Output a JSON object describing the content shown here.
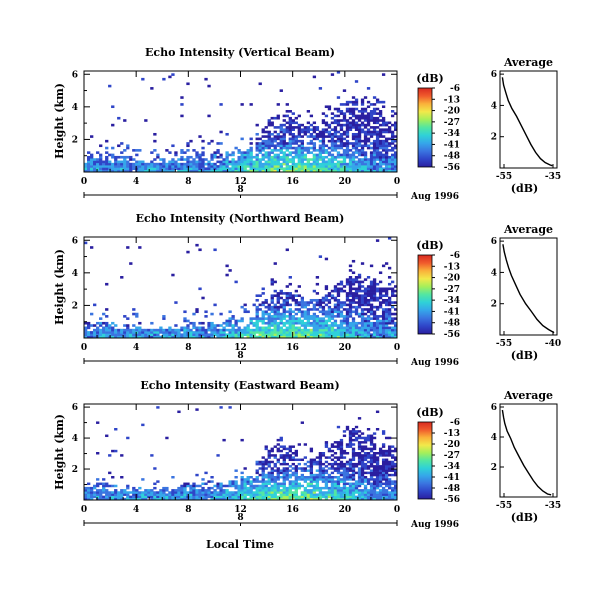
{
  "figure": {
    "x_axis_label": "Local Time",
    "date_label": "Aug 1996",
    "day_label": "8",
    "x_ticks": [
      "0",
      "4",
      "8",
      "12",
      "16",
      "20",
      "0"
    ],
    "y_ticks": [
      "6",
      "4",
      "2"
    ],
    "y_label": "Height (km)",
    "colorbar_unit": "(dB)",
    "colorbar_colors": [
      "#2a1fa0",
      "#2f45c8",
      "#3a74e0",
      "#35a6ea",
      "#2fd1d8",
      "#52e6a2",
      "#a5ef5a",
      "#f2e94a",
      "#fab13a",
      "#f05a2c",
      "#d92a20"
    ],
    "avg_title": "Average",
    "avg_xlabel": "(dB)"
  },
  "chart_data": [
    {
      "type": "heatmap",
      "title": "Echo Intensity (Vertical Beam)",
      "x": [
        0,
        4,
        8,
        12,
        16,
        20,
        24
      ],
      "xlim": [
        0,
        24
      ],
      "ylim": [
        0,
        6.2
      ],
      "colorbar_ticks": [
        "-6",
        "-13",
        "-20",
        "-27",
        "-34",
        "-41",
        "-48",
        "-56"
      ],
      "profile": {
        "title": "Average",
        "xticks": [
          "-55",
          "-35"
        ],
        "xlim": [
          -57,
          -33
        ],
        "ylim": [
          0,
          6.2
        ],
        "x": [
          -56,
          -55.5,
          -54.5,
          -53.5,
          -52,
          -50,
          -48,
          -46,
          -44,
          -42,
          -40,
          -38,
          -36,
          -35
        ],
        "y": [
          5.8,
          5.3,
          4.8,
          4.3,
          3.8,
          3.3,
          2.7,
          2.1,
          1.5,
          1.0,
          0.6,
          0.35,
          0.2,
          0.15
        ]
      }
    },
    {
      "type": "heatmap",
      "title": "Echo Intensity (Northward Beam)",
      "x": [
        0,
        4,
        8,
        12,
        16,
        20,
        24
      ],
      "xlim": [
        0,
        24
      ],
      "ylim": [
        0,
        6.2
      ],
      "colorbar_ticks": [
        "-6",
        "-13",
        "-20",
        "-27",
        "-34",
        "-41",
        "-48",
        "-56"
      ],
      "profile": {
        "title": "Average",
        "xticks": [
          "-55",
          "-40"
        ],
        "xlim": [
          -57,
          -37
        ],
        "ylim": [
          0,
          6.2
        ],
        "x": [
          -56,
          -55.5,
          -54.8,
          -54,
          -53,
          -51.5,
          -50,
          -48,
          -46,
          -44,
          -42,
          -40,
          -38.5,
          -38
        ],
        "y": [
          5.8,
          5.3,
          4.8,
          4.3,
          3.8,
          3.2,
          2.6,
          2.0,
          1.5,
          1.0,
          0.6,
          0.35,
          0.2,
          0.15
        ]
      }
    },
    {
      "type": "heatmap",
      "title": "Echo Intensity (Eastward Beam)",
      "x": [
        0,
        4,
        8,
        12,
        16,
        20,
        24
      ],
      "xlim": [
        0,
        24
      ],
      "ylim": [
        0,
        6.2
      ],
      "colorbar_ticks": [
        "-6",
        "-13",
        "-20",
        "-27",
        "-34",
        "-41",
        "-48",
        "-56"
      ],
      "profile": {
        "title": "Average",
        "xticks": [
          "-55",
          "-35"
        ],
        "xlim": [
          -57,
          -33
        ],
        "ylim": [
          0,
          6.2
        ],
        "x": [
          -56,
          -55.5,
          -55,
          -54,
          -52.5,
          -51,
          -49,
          -47,
          -45,
          -43,
          -41,
          -39,
          -37,
          -35.5
        ],
        "y": [
          5.8,
          5.3,
          4.9,
          4.4,
          3.9,
          3.3,
          2.7,
          2.1,
          1.6,
          1.1,
          0.7,
          0.4,
          0.2,
          0.15
        ]
      }
    }
  ]
}
